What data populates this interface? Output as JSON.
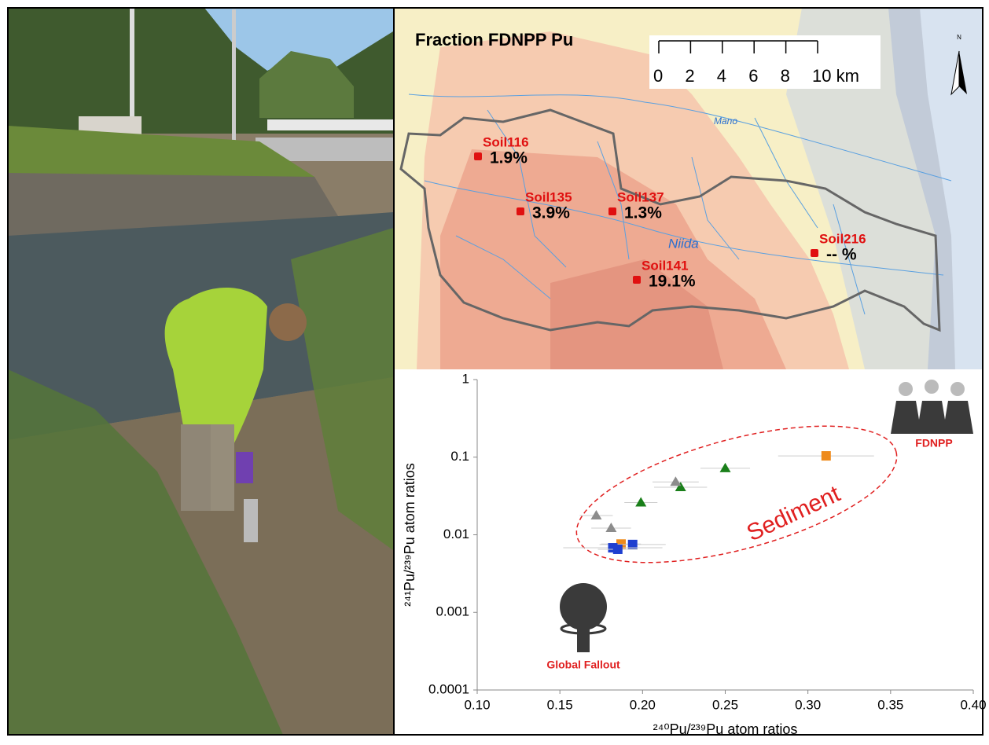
{
  "map": {
    "title": "Fraction FDNPP Pu",
    "scale_labels": [
      "0",
      "2",
      "4",
      "6",
      "8",
      "10 km"
    ],
    "north": "N",
    "rivers": [
      "Mano",
      "Niida"
    ],
    "sites": [
      {
        "name": "Soil116",
        "fraction": "1.9%"
      },
      {
        "name": "Soil135",
        "fraction": "3.9%"
      },
      {
        "name": "Soil137",
        "fraction": "1.3%"
      },
      {
        "name": "Soil141",
        "fraction": "19.1%"
      },
      {
        "name": "Soil216",
        "fraction": "-- %"
      }
    ]
  },
  "chart_data": {
    "type": "scatter",
    "xlabel": "²⁴⁰Pu/²³⁹Pu atom ratios",
    "ylabel": "²⁴¹Pu/²³⁹Pu atom ratios",
    "log_y": true,
    "xlim": [
      0.1,
      0.4
    ],
    "ylim": [
      0.0001,
      1
    ],
    "xticks": [
      {
        "value": 0.1,
        "label": "0.10"
      },
      {
        "value": 0.15,
        "label": "0.15"
      },
      {
        "value": 0.2,
        "label": "0.20"
      },
      {
        "value": 0.25,
        "label": "0.25"
      },
      {
        "value": 0.3,
        "label": "0.30"
      },
      {
        "value": 0.35,
        "label": "0.35"
      },
      {
        "value": 0.4,
        "label": "0.40"
      }
    ],
    "yticks": [
      1,
      0.1,
      0.01,
      0.001,
      0.0001
    ],
    "annotations": [
      "Sediment",
      "FDNPP",
      "Global Fallout"
    ],
    "series": [
      {
        "color": "#ee8a1b",
        "marker": "square",
        "x": [
          0.311,
          0.187
        ],
        "values": [
          0.104,
          0.0076
        ],
        "xerr": [
          0.029,
          0.012
        ]
      },
      {
        "color": "#1a7f1a",
        "marker": "triangle",
        "x": [
          0.25,
          0.223,
          0.199
        ],
        "values": [
          0.072,
          0.041,
          0.026
        ],
        "xerr": [
          0.015,
          0.016,
          0.01
        ]
      },
      {
        "color": "#8c8c8c",
        "marker": "triangle",
        "x": [
          0.22,
          0.181,
          0.172
        ],
        "values": [
          0.048,
          0.0122,
          0.0177
        ],
        "xerr": [
          0.014,
          0.012,
          0.01
        ]
      },
      {
        "color": "#1f3fd0",
        "marker": "square",
        "x": [
          0.194,
          0.182,
          0.185
        ],
        "values": [
          0.0075,
          0.0068,
          0.0065
        ],
        "xerr": [
          0.02,
          0.03,
          0.012
        ]
      }
    ]
  }
}
